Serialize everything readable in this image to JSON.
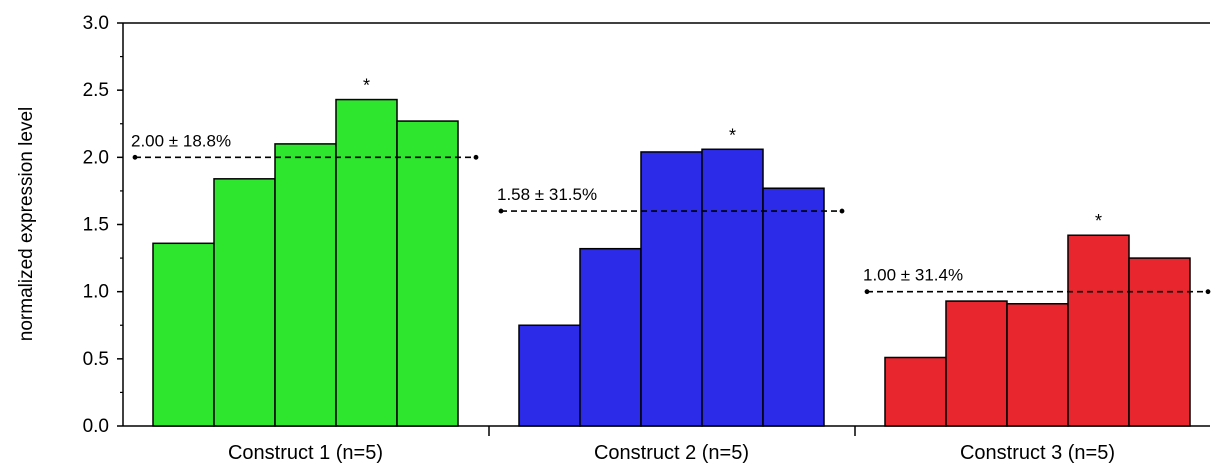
{
  "chart_data": {
    "type": "bar",
    "ylabel": "normalized expression level",
    "ylim": [
      0,
      3.0
    ],
    "yticks": [
      "0.0",
      "0.5",
      "1.0",
      "1.5",
      "2.0",
      "2.5",
      "3.0"
    ],
    "grid": false,
    "groups": [
      {
        "label": "Construct 1 (n=5)",
        "color": "#2ee62e",
        "values": [
          1.36,
          1.84,
          2.1,
          2.43,
          2.27
        ],
        "mean": 2.0,
        "mean_label": "2.00 ± 18.8%",
        "star": "*",
        "star_bar_index": 3
      },
      {
        "label": "Construct 2 (n=5)",
        "color": "#2b2be8",
        "values": [
          0.75,
          1.32,
          2.04,
          2.06,
          1.77
        ],
        "mean": 1.6,
        "mean_label": "1.58 ± 31.5%",
        "star": "*",
        "star_bar_index": 3
      },
      {
        "label": "Construct 3 (n=5)",
        "color": "#e8262e",
        "values": [
          0.51,
          0.93,
          0.91,
          1.42,
          1.25
        ],
        "mean": 1.0,
        "mean_label": "1.00 ± 31.4%",
        "star": "*",
        "star_bar_index": 3
      }
    ]
  }
}
